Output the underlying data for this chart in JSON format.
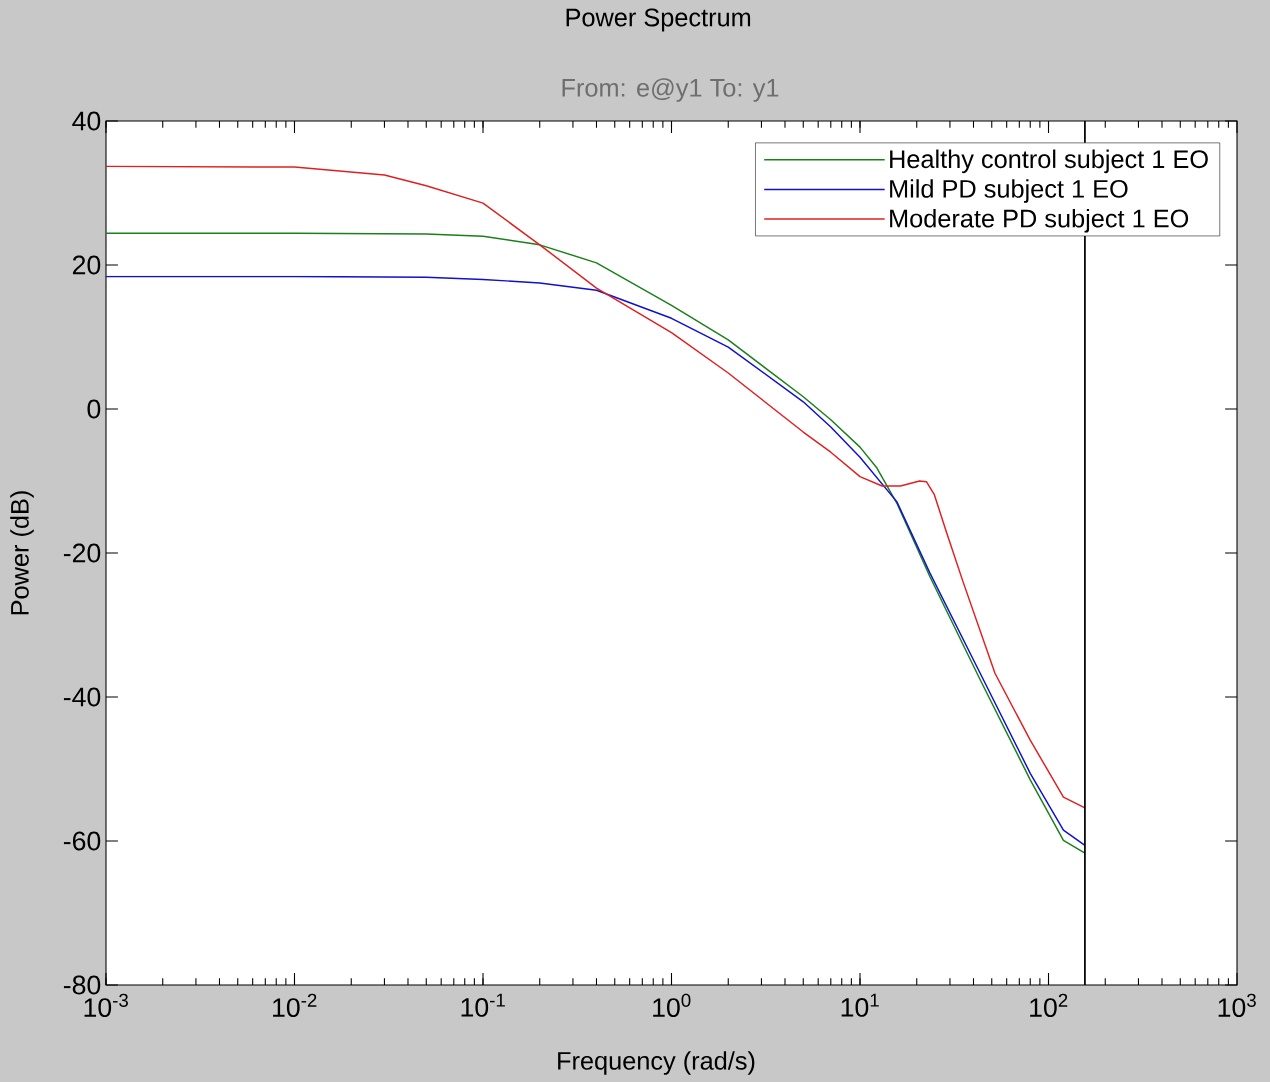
{
  "chart_data": {
    "type": "line",
    "title": "Power Spectrum",
    "subtitle": "From: e@y1  To: y1",
    "xlabel": "Frequency  (rad/s)",
    "ylabel": "Power (dB)",
    "log": "x",
    "grid": false,
    "legend": "top right",
    "line_style": "solid",
    "marker": "none",
    "xlim": [
      0.001,
      1000
    ],
    "ylim": [
      -80,
      40
    ],
    "xticks": [
      {
        "value": 0.001,
        "label": "10$^{-3}$"
      },
      {
        "value": 0.01,
        "label": "10$^{-2}$"
      },
      {
        "value": 0.1,
        "label": "10$^{-1}$"
      },
      {
        "value": 1,
        "label": "10$^{0}$"
      },
      {
        "value": 10,
        "label": "10$^{1}$"
      },
      {
        "value": 100,
        "label": "10$^{2}$"
      },
      {
        "value": 1000,
        "label": "10$^{3}$"
      }
    ],
    "yticks": [
      -80,
      -60,
      -40,
      -20,
      0,
      20,
      40
    ],
    "ref_lines": [
      {
        "axis": "x",
        "value": 156,
        "label": null,
        "color": "#000000"
      }
    ],
    "series": [
      {
        "name": "Healthy control subject 1 EO",
        "color": "#1a801a",
        "x": [
          0.001,
          0.01,
          0.05,
          0.1,
          0.2,
          0.4,
          1,
          2,
          5,
          7,
          10,
          12.3,
          15.7,
          23.5,
          43.4,
          80,
          120,
          156
        ],
        "values": [
          24.4,
          24.4,
          24.3,
          24.0,
          22.8,
          20.3,
          14.4,
          9.6,
          1.7,
          -1.5,
          -5.3,
          -8.2,
          -13.1,
          -23.3,
          -37.6,
          -51.5,
          -59.9,
          -61.7
        ]
      },
      {
        "name": "Mild PD subject 1 EO",
        "color": "#1010d0",
        "x": [
          0.001,
          0.01,
          0.05,
          0.1,
          0.2,
          0.4,
          1,
          2,
          5,
          7,
          10,
          15.7,
          23.5,
          43.4,
          80,
          120,
          156
        ],
        "values": [
          18.4,
          18.4,
          18.3,
          18.0,
          17.5,
          16.5,
          12.6,
          8.6,
          1.0,
          -2.5,
          -6.7,
          -12.9,
          -22.8,
          -36.7,
          -50.6,
          -58.5,
          -60.6
        ]
      },
      {
        "name": "Moderate PD subject 1 EO",
        "color": "#e02020",
        "x": [
          0.001,
          0.01,
          0.03,
          0.05,
          0.1,
          0.2,
          0.4,
          1,
          2,
          5,
          7,
          10,
          13.1,
          16.4,
          20.7,
          22.5,
          24.8,
          28.5,
          35,
          52,
          80,
          120,
          156
        ],
        "values": [
          33.7,
          33.6,
          32.5,
          31.0,
          28.6,
          22.8,
          16.8,
          10.6,
          5.0,
          -3.2,
          -6.0,
          -9.4,
          -10.7,
          -10.7,
          -10.0,
          -10.1,
          -11.9,
          -16.8,
          -23.8,
          -36.7,
          -46.0,
          -53.9,
          -55.4
        ]
      }
    ]
  }
}
